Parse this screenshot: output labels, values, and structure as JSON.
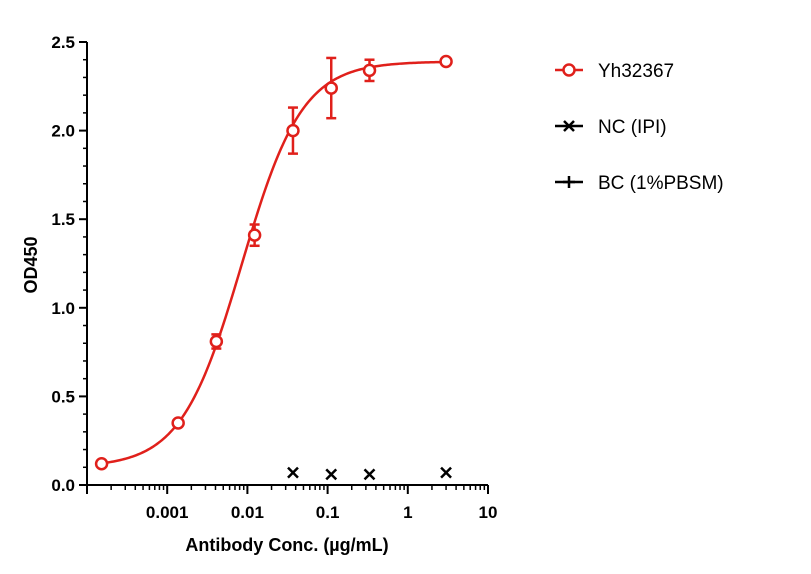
{
  "chart_data": {
    "type": "scatter",
    "xscale": "log",
    "xlim": [
      0.0001,
      10
    ],
    "ylim": [
      0,
      2.5
    ],
    "xlabel": "Antibody Conc. (µg/mL)",
    "ylabel": "OD450",
    "x_ticks": [
      {
        "value": 0.001,
        "label": "0.001"
      },
      {
        "value": 0.01,
        "label": "0.01"
      },
      {
        "value": 0.1,
        "label": "0.1"
      },
      {
        "value": 1,
        "label": "1"
      },
      {
        "value": 10,
        "label": "10"
      }
    ],
    "y_ticks": [
      {
        "value": 0,
        "label": "0.0"
      },
      {
        "value": 0.5,
        "label": "0.5"
      },
      {
        "value": 1.0,
        "label": "1.0"
      },
      {
        "value": 1.5,
        "label": "1.5"
      },
      {
        "value": 2.0,
        "label": "2.0"
      },
      {
        "value": 2.5,
        "label": "2.5"
      }
    ],
    "grid": false,
    "legend_position": "right",
    "series": [
      {
        "name": "Yh32367",
        "color": "#e0201b",
        "marker": "open-circle",
        "curve": "4PL fit",
        "fit": {
          "bottom": 0.1,
          "top": 2.39,
          "ec50": 0.0085,
          "hill": 1.15
        },
        "points": [
          {
            "x": 0.000152,
            "y": 0.12,
            "err": 0
          },
          {
            "x": 0.00137,
            "y": 0.35,
            "err": 0
          },
          {
            "x": 0.0041,
            "y": 0.81,
            "err": 0.04
          },
          {
            "x": 0.0123,
            "y": 1.41,
            "err": 0.06
          },
          {
            "x": 0.037,
            "y": 2.0,
            "err": 0.13
          },
          {
            "x": 0.111,
            "y": 2.24,
            "err": 0.17
          },
          {
            "x": 0.333,
            "y": 2.34,
            "err": 0.06
          },
          {
            "x": 3.0,
            "y": 2.39,
            "err": 0
          }
        ]
      },
      {
        "name": "NC (IPI)",
        "color": "#000000",
        "marker": "x",
        "points": [
          {
            "x": 0.037,
            "y": 0.07
          },
          {
            "x": 0.111,
            "y": 0.06
          },
          {
            "x": 0.333,
            "y": 0.06
          },
          {
            "x": 3.0,
            "y": 0.07
          }
        ]
      },
      {
        "name": "BC (1%PBSM)",
        "color": "#000000",
        "marker": "plus",
        "points": []
      }
    ]
  }
}
